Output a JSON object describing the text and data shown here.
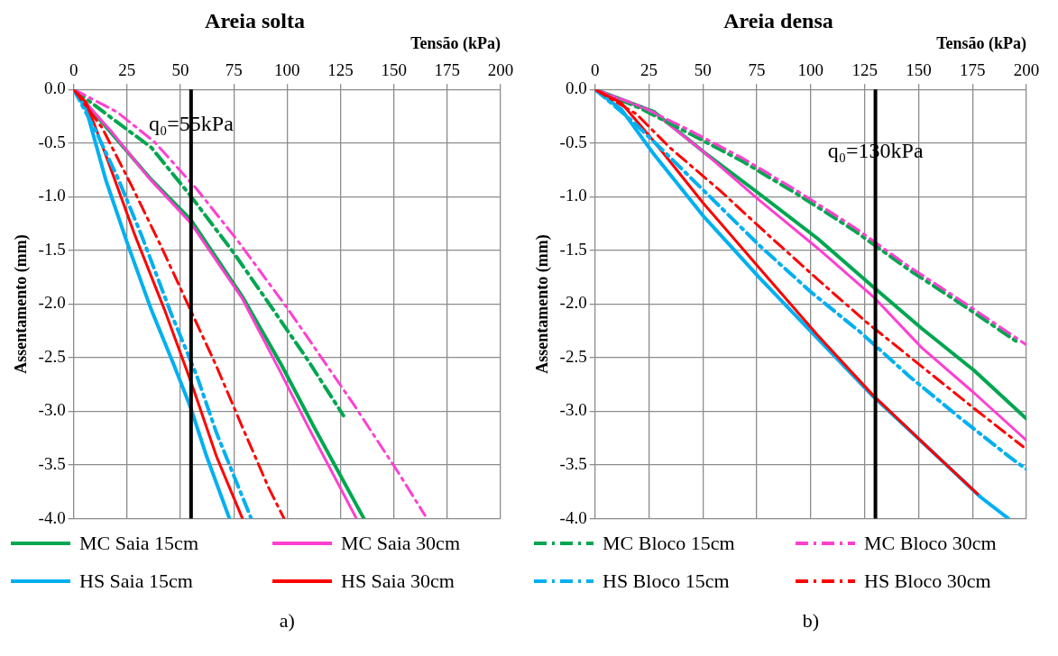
{
  "chart_data": [
    {
      "type": "line",
      "title": "Areia solta",
      "xlabel": "Tensão (kPa)",
      "ylabel": "Assentamento (mm)",
      "xlim": [
        0,
        200
      ],
      "xticks": [
        0,
        25,
        50,
        75,
        100,
        125,
        150,
        175,
        200
      ],
      "ylim": [
        -4,
        0
      ],
      "yticks": [
        {
          "value": 0,
          "label": "0.0"
        },
        -0.5,
        {
          "value": -1,
          "label": "-1.0"
        },
        -1.5,
        {
          "value": -2,
          "label": "-2.0"
        },
        -2.5,
        {
          "value": -3,
          "label": "-3.0"
        },
        -3.5,
        {
          "value": -4,
          "label": "-4.0"
        }
      ],
      "grid": true,
      "legend": "bottom",
      "marker": "none",
      "ref_lines": [
        {
          "axis": "x",
          "value": 55,
          "label": "q₀=55kPa",
          "color": "#000000"
        }
      ],
      "annotations": [
        "a)"
      ],
      "series": [
        {
          "name": "MC Saia 15cm",
          "color": "#00a650",
          "line_style": "solid",
          "x": [
            0,
            19.5,
            36.3,
            54.7,
            79,
            97.4,
            112.7,
            136
          ],
          "values": [
            0,
            -0.45,
            -0.84,
            -1.21,
            -1.93,
            -2.57,
            -3.15,
            -4.0
          ]
        },
        {
          "name": "MC Saia 30cm",
          "color": "#ff3fd0",
          "line_style": "solid",
          "x": [
            0,
            18,
            35,
            55,
            79,
            96,
            110,
            132.5
          ],
          "values": [
            0,
            -0.4,
            -0.82,
            -1.25,
            -1.95,
            -2.6,
            -3.15,
            -4.0
          ]
        },
        {
          "name": "MC Bloco 15cm",
          "color": "#00a650",
          "line_style": "dashed",
          "x": [
            0,
            20,
            36.3,
            54.7,
            74.5,
            92,
            109.6,
            126.4
          ],
          "values": [
            0,
            -0.3,
            -0.54,
            -0.99,
            -1.51,
            -2.01,
            -2.52,
            -3.04
          ]
        },
        {
          "name": "MC Bloco 30cm",
          "color": "#ff3fd0",
          "line_style": "dashed",
          "x": [
            0,
            20.3,
            37.9,
            57.7,
            77.6,
            100.5,
            131,
            152.4,
            164.6
          ],
          "values": [
            0,
            -0.21,
            -0.49,
            -0.93,
            -1.43,
            -2.05,
            -2.93,
            -3.58,
            -3.97
          ]
        },
        {
          "name": "HS Saia 15cm",
          "color": "#00b0f0",
          "line_style": "solid",
          "x": [
            0,
            5.8,
            15,
            24.9,
            36.3,
            47,
            54.7,
            62.3,
            73
          ],
          "values": [
            0,
            -0.18,
            -0.84,
            -1.42,
            -2.05,
            -2.57,
            -2.96,
            -3.42,
            -4.0
          ]
        },
        {
          "name": "HS Saia 30cm",
          "color": "#ff0000",
          "line_style": "solid",
          "x": [
            0,
            5.8,
            16.5,
            28.7,
            42.5,
            55.4,
            66.9,
            79.1
          ],
          "values": [
            0,
            -0.12,
            -0.69,
            -1.36,
            -2.05,
            -2.75,
            -3.42,
            -4.0
          ]
        },
        {
          "name": "HS Bloco 15cm",
          "color": "#00b0f0",
          "line_style": "dashed",
          "x": [
            0,
            10.4,
            21,
            31.8,
            45.5,
            57.7,
            66.9,
            83
          ],
          "values": [
            0,
            -0.39,
            -0.84,
            -1.36,
            -2.08,
            -2.67,
            -3.2,
            -3.99
          ]
        },
        {
          "name": "HS Bloco 30cm",
          "color": "#ff0000",
          "line_style": "dashed",
          "x": [
            0,
            13.4,
            27.2,
            40.9,
            53.9,
            66.9,
            79.1,
            91.3,
            98.6
          ],
          "values": [
            0,
            -0.36,
            -0.9,
            -1.46,
            -2.02,
            -2.58,
            -3.15,
            -3.71,
            -4.0
          ]
        }
      ]
    },
    {
      "type": "line",
      "title": "Areia densa",
      "xlabel": "Tensão (kPa)",
      "ylabel": "Assentamento (mm)",
      "xlim": [
        0,
        200
      ],
      "xticks": [
        0,
        25,
        50,
        75,
        100,
        125,
        150,
        175,
        200
      ],
      "ylim": [
        -4,
        0
      ],
      "yticks": [
        {
          "value": 0,
          "label": "0.0"
        },
        -0.5,
        {
          "value": -1,
          "label": "-1.0"
        },
        -1.5,
        {
          "value": -2,
          "label": "-2.0"
        },
        -2.5,
        {
          "value": -3,
          "label": "-3.0"
        },
        -3.5,
        {
          "value": -4,
          "label": "-4.0"
        }
      ],
      "grid": true,
      "marker": "none",
      "ref_lines": [
        {
          "axis": "x",
          "value": 130,
          "label": "q₀=130kPa",
          "color": "#000000"
        }
      ],
      "annotations": [
        "b)"
      ],
      "series": [
        {
          "color": "#00a650",
          "line_style": "solid",
          "x": [
            0,
            27.5,
            50.2,
            76,
            103.2,
            128.9,
            151.6,
            175.8,
            200
          ],
          "values": [
            0,
            -0.21,
            -0.58,
            -0.97,
            -1.39,
            -1.84,
            -2.23,
            -2.62,
            -3.07
          ]
        },
        {
          "color": "#ff3fd0",
          "line_style": "solid",
          "x": [
            0,
            27.5,
            50.2,
            76,
            103.2,
            128.9,
            151.6,
            175.8,
            200
          ],
          "values": [
            0,
            -0.22,
            -0.58,
            -1.03,
            -1.48,
            -1.93,
            -2.41,
            -2.83,
            -3.27
          ]
        },
        {
          "color": "#00a650",
          "line_style": "dashed",
          "x": [
            0,
            21.5,
            42.7,
            68.4,
            94.1,
            119.8,
            145.5,
            171.3,
            195.5
          ],
          "values": [
            0,
            -0.18,
            -0.4,
            -0.67,
            -0.98,
            -1.31,
            -1.68,
            -2.02,
            -2.35
          ]
        },
        {
          "color": "#ff3fd0",
          "line_style": "dashed",
          "x": [
            0,
            21.5,
            42.7,
            68.4,
            94.1,
            119.8,
            145.5,
            171.3,
            200
          ],
          "values": [
            0,
            -0.16,
            -0.37,
            -0.64,
            -0.95,
            -1.28,
            -1.65,
            -1.99,
            -2.38
          ]
        },
        {
          "color": "#00b0f0",
          "line_style": "solid",
          "x": [
            0,
            12.4,
            27.5,
            50.2,
            76,
            103.2,
            128.9,
            156.1,
            178.8,
            191.7
          ],
          "values": [
            0,
            -0.19,
            -0.61,
            -1.18,
            -1.75,
            -2.32,
            -2.86,
            -3.37,
            -3.8,
            -4.0
          ]
        },
        {
          "color": "#ff0000",
          "line_style": "solid",
          "x": [
            0,
            12.4,
            27.5,
            50.2,
            76,
            103.2,
            128.9,
            156.1,
            177.3
          ],
          "values": [
            0,
            -0.13,
            -0.49,
            -1.06,
            -1.66,
            -2.29,
            -2.85,
            -3.37,
            -3.77
          ]
        },
        {
          "color": "#00b0f0",
          "line_style": "dashed",
          "x": [
            0,
            17,
            33.6,
            54.8,
            76,
            100.2,
            122.9,
            145.5,
            169.8,
            192.5,
            200
          ],
          "values": [
            0,
            -0.29,
            -0.61,
            -1.03,
            -1.45,
            -1.89,
            -2.26,
            -2.67,
            -3.07,
            -3.43,
            -3.54
          ]
        },
        {
          "color": "#ff0000",
          "line_style": "dashed",
          "x": [
            0,
            19.2,
            35.1,
            57.8,
            80.5,
            103.2,
            125.9,
            150.1,
            174.3,
            198.5
          ],
          "values": [
            0,
            -0.23,
            -0.55,
            -0.94,
            -1.36,
            -1.77,
            -2.17,
            -2.56,
            -2.95,
            -3.33
          ]
        }
      ]
    }
  ]
}
